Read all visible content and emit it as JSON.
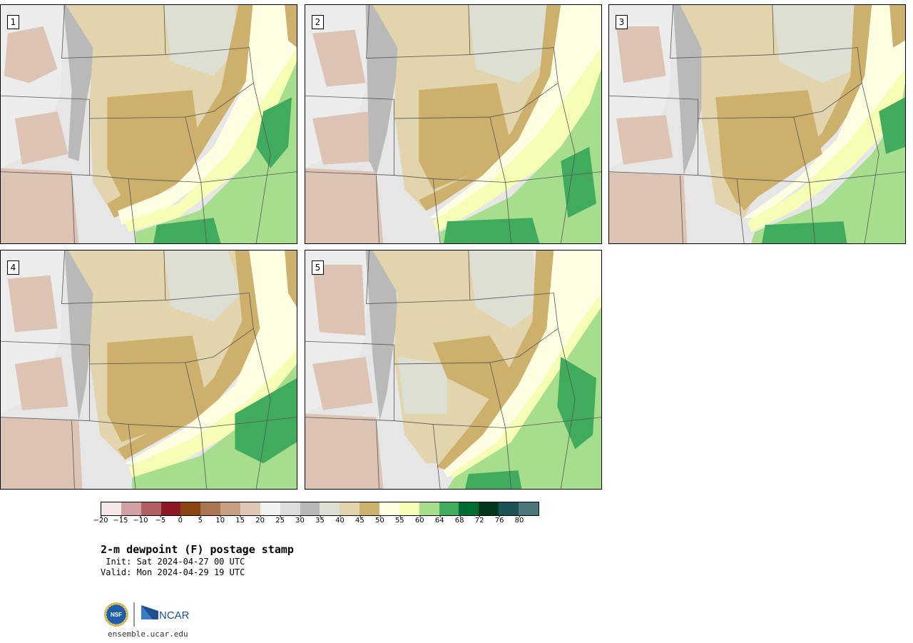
{
  "panels": [
    {
      "label": "1"
    },
    {
      "label": "2"
    },
    {
      "label": "3"
    },
    {
      "label": "4"
    },
    {
      "label": "5"
    }
  ],
  "colorbar": {
    "colors": [
      "#f6e8e8",
      "#d3a0a4",
      "#b25f63",
      "#8b1822",
      "#8a4513",
      "#a97552",
      "#c69f82",
      "#e0c6b4",
      "#f0f0f0",
      "#dcdcdc",
      "#b8b8b8",
      "#dedfd3",
      "#e2d4ad",
      "#cdb06c",
      "#fefee2",
      "#f6fdb5",
      "#a7de8e",
      "#41ab5d",
      "#006d30",
      "#00361a",
      "#1c5357",
      "#4c767a"
    ],
    "ticks": [
      "−20",
      "−15",
      "−10",
      "−5",
      "0",
      "5",
      "10",
      "15",
      "20",
      "25",
      "30",
      "35",
      "40",
      "45",
      "50",
      "55",
      "60",
      "64",
      "68",
      "72",
      "76",
      "80"
    ]
  },
  "title": "2-m dewpoint (F) postage stamp",
  "init": " Init: Sat 2024-04-27 00 UTC",
  "valid": "Valid: Mon 2024-04-29 19 UTC",
  "logo": {
    "nsf_text": "NSF",
    "ncar_text": "NCAR"
  },
  "website": "ensemble.ucar.edu"
}
